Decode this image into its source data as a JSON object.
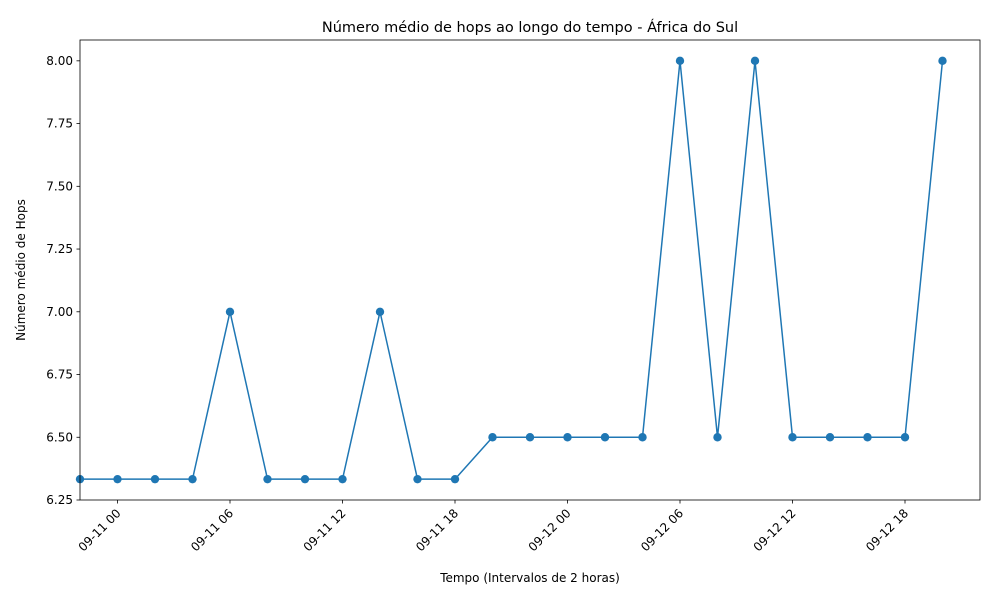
{
  "chart_data": {
    "type": "line",
    "title": "Número médio de hops ao longo do tempo - África do Sul",
    "xlabel": "Tempo (Intervalos de 2 horas)",
    "ylabel": "Número médio de Hops",
    "x": [
      "09-10 22:00",
      "09-11 00:00",
      "09-11 02:00",
      "09-11 04:00",
      "09-11 06:00",
      "09-11 08:00",
      "09-11 10:00",
      "09-11 12:00",
      "09-11 14:00",
      "09-11 16:00",
      "09-11 18:00",
      "09-11 20:00",
      "09-11 22:00",
      "09-12 00:00",
      "09-12 02:00",
      "09-12 04:00",
      "09-12 06:00",
      "09-12 08:00",
      "09-12 10:00",
      "09-12 12:00",
      "09-12 14:00",
      "09-12 16:00",
      "09-12 18:00",
      "09-12 20:00"
    ],
    "series": [
      {
        "values": [
          6.333,
          6.333,
          6.333,
          6.333,
          7.0,
          6.333,
          6.333,
          6.333,
          7.0,
          6.333,
          6.333,
          6.5,
          6.5,
          6.5,
          6.5,
          6.5,
          8.0,
          6.5,
          8.0,
          6.5,
          6.5,
          6.5,
          6.5,
          8.0
        ],
        "color": "#1f77b4",
        "marker": "circle"
      }
    ],
    "x_ticks": [
      "09-11 00",
      "09-11 06",
      "09-11 12",
      "09-11 18",
      "09-12 00",
      "09-12 06",
      "09-12 12",
      "09-12 18"
    ],
    "x_tick_hours": [
      0,
      6,
      12,
      18,
      24,
      30,
      36,
      42
    ],
    "x_range_hours": [
      -2.0,
      46.0
    ],
    "y_ticks": [
      "6.25",
      "6.50",
      "6.75",
      "7.00",
      "7.25",
      "7.50",
      "7.75",
      "8.00"
    ],
    "ylim": [
      6.25,
      8.083
    ],
    "grid": false,
    "legend": "none"
  }
}
